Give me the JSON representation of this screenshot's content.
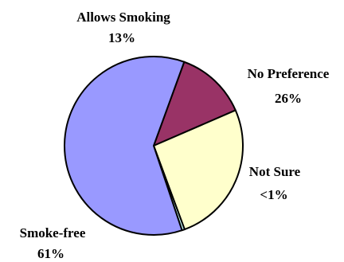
{
  "chart_data": {
    "type": "pie",
    "title": "",
    "slices": [
      {
        "label": "Allows Smoking",
        "value_label": "13%",
        "value": 13,
        "color": "#993366"
      },
      {
        "label": "No Preference",
        "value_label": "26%",
        "value": 26,
        "color": "#FFFFCC"
      },
      {
        "label": "Not Sure",
        "value_label": "<1%",
        "value": 0.5,
        "color": "#CCFFFF"
      },
      {
        "label": "Smoke-free",
        "value_label": "61%",
        "value": 61,
        "color": "#9999FF"
      }
    ],
    "legend": "none",
    "labels_outside": true
  }
}
